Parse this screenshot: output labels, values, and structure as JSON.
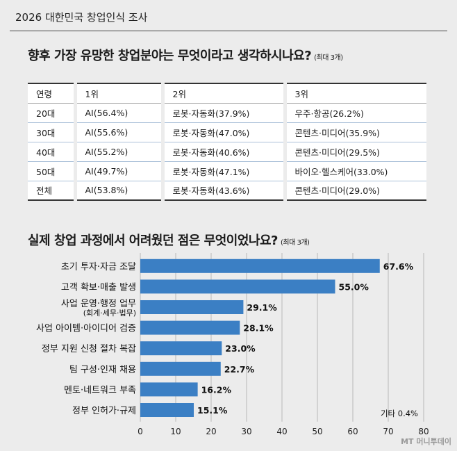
{
  "header": {
    "title": "2026 대한민국 창업인식 조사"
  },
  "section1": {
    "question": "향후 가장 유망한 창업분야는 무엇이라고 생각하시나요?",
    "note": "(최대 3개)",
    "headers": [
      "연령",
      "1위",
      "2위",
      "3위"
    ],
    "rows": [
      [
        "20대",
        "AI(56.4%)",
        "로봇·자동화(37.9%)",
        "우주·항공(26.2%)"
      ],
      [
        "30대",
        "AI(55.6%)",
        "로봇·자동화(47.0%)",
        "콘텐츠·미디어(35.9%)"
      ],
      [
        "40대",
        "AI(55.2%)",
        "로봇·자동화(40.6%)",
        "콘텐츠·미디어(29.5%)"
      ],
      [
        "50대",
        "AI(49.7%)",
        "로봇·자동화(47.1%)",
        "바이오·헬스케어(33.0%)"
      ],
      [
        "전체",
        "AI(53.8%)",
        "로봇·자동화(43.6%)",
        "콘텐츠·미디어(29.0%)"
      ]
    ]
  },
  "section2": {
    "question": "실제 창업 과정에서 어려웠던 점은 무엇이었나요?",
    "note": "(최대 3개)"
  },
  "chart_data": {
    "type": "bar",
    "orientation": "horizontal",
    "categories": [
      [
        "초기 투자·자금 조달"
      ],
      [
        "고객 확보·매출 발생"
      ],
      [
        "사업 운영·행정 업무",
        "(회계·세무·법무)"
      ],
      [
        "사업 아이템·아이디어 검증"
      ],
      [
        "정부 지원 신청 절차 복잡"
      ],
      [
        "팀 구성·인재 채용"
      ],
      [
        "멘토·네트워크 부족"
      ],
      [
        "정부 인허가·규제"
      ]
    ],
    "values": [
      67.6,
      55.0,
      29.1,
      28.1,
      23.0,
      22.7,
      16.2,
      15.1
    ],
    "value_labels": [
      "67.6%",
      "55.0%",
      "29.1%",
      "28.1%",
      "23.0%",
      "22.7%",
      "16.2%",
      "15.1%"
    ],
    "xlim": [
      0,
      80
    ],
    "xticks": [
      0,
      10,
      20,
      30,
      40,
      50,
      60,
      70,
      80
    ],
    "bar_color": "#3b7fc4",
    "grid": true,
    "annotation": "기타 0.4%"
  },
  "footer": {
    "credit": "MT 머니투데이"
  }
}
